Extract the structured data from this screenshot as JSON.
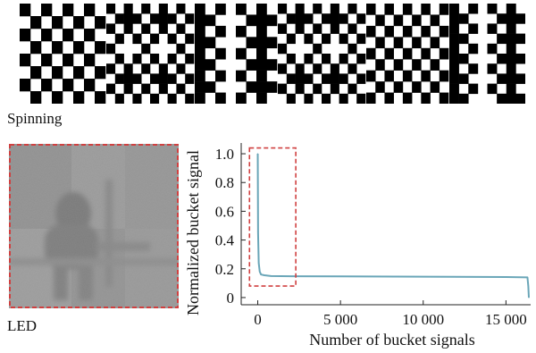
{
  "top_panel": {
    "caption": "Spinning"
  },
  "bottom_panel": {
    "caption": "LED"
  },
  "chart_data": {
    "type": "line",
    "title": "",
    "xlabel": "Number of bucket signals",
    "ylabel": "Normalized bucket signal",
    "xlim": [
      -1000,
      16600
    ],
    "ylim": [
      -0.05,
      1.05
    ],
    "xticks": [
      0,
      5000,
      10000,
      15000
    ],
    "xtick_labels": [
      "0",
      "5 000",
      "10 000",
      "15 000"
    ],
    "yticks": [
      0,
      0.2,
      0.4,
      0.6,
      0.8,
      1.0
    ],
    "ytick_labels": [
      "0",
      "0.2",
      "0.4",
      "0.6",
      "0.8",
      "1.0"
    ],
    "grid": false,
    "legend": "none",
    "series": [
      {
        "color": "#6aa6b8",
        "x": [
          0,
          20,
          60,
          120,
          200,
          400,
          800,
          2000,
          5000,
          10000,
          15000,
          16300,
          16350,
          16384
        ],
        "y": [
          1.0,
          0.45,
          0.24,
          0.18,
          0.16,
          0.155,
          0.15,
          0.148,
          0.147,
          0.145,
          0.143,
          0.14,
          0.08,
          0.0
        ]
      }
    ],
    "highlight_box": {
      "x_range": [
        -500,
        2300
      ],
      "y_range": [
        0.08,
        1.04
      ],
      "color": "#d04040",
      "style": "dashed"
    }
  }
}
